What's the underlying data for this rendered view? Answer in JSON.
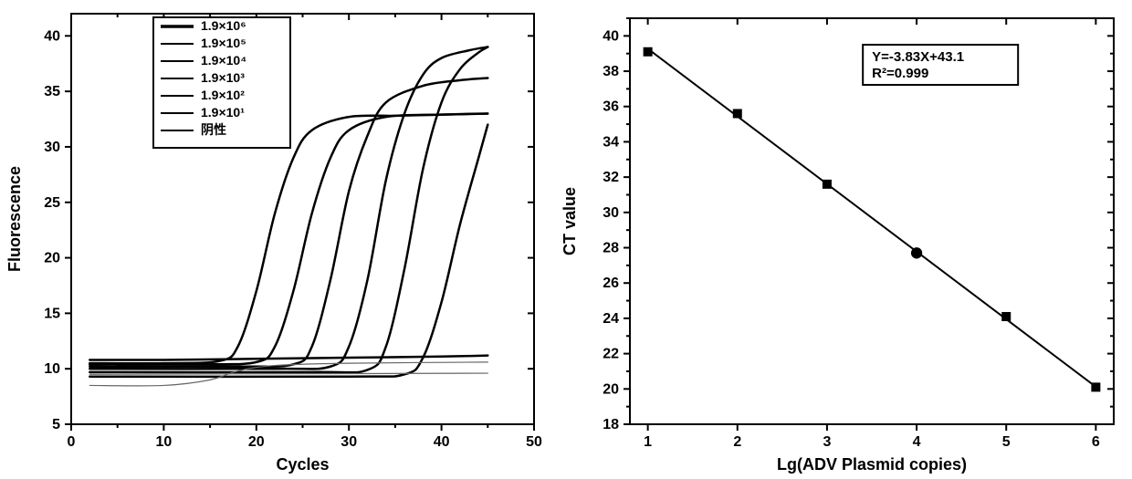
{
  "left_chart": {
    "type": "line",
    "xlabel": "Cycles",
    "ylabel": "Fluorescence",
    "label_fontsize": 18,
    "tick_fontsize": 16,
    "xlim": [
      0,
      50
    ],
    "ylim": [
      5,
      42
    ],
    "xtick_step": 10,
    "ytick_step": 5,
    "minor_ticks": true,
    "background_color": "#ffffff",
    "axis_color": "#000000",
    "legend": {
      "position": "top-inside",
      "items": [
        {
          "label": "1.9×10⁶",
          "weight": "bold"
        },
        {
          "label": "1.9×10⁵",
          "weight": "normal"
        },
        {
          "label": "1.9×10⁴",
          "weight": "normal"
        },
        {
          "label": "1.9×10³",
          "weight": "normal"
        },
        {
          "label": "1.9×10²",
          "weight": "normal"
        },
        {
          "label": "1.9×10¹",
          "weight": "normal"
        },
        {
          "label": "阴性",
          "weight": "normal"
        }
      ]
    },
    "series": [
      {
        "name": "1e6",
        "color": "#000000",
        "width": 2.5,
        "threshold_cycle": 20,
        "plateau": 33,
        "data": [
          [
            2,
            10.5
          ],
          [
            10,
            10.5
          ],
          [
            16,
            10.7
          ],
          [
            18,
            12.0
          ],
          [
            20,
            17
          ],
          [
            22,
            24
          ],
          [
            24,
            29
          ],
          [
            26,
            31.5
          ],
          [
            30,
            32.7
          ],
          [
            35,
            32.8
          ],
          [
            40,
            32.9
          ],
          [
            45,
            33
          ]
        ]
      },
      {
        "name": "1e5",
        "color": "#000000",
        "width": 2.5,
        "threshold_cycle": 24,
        "plateau": 33,
        "data": [
          [
            2,
            10.4
          ],
          [
            14,
            10.4
          ],
          [
            20,
            10.6
          ],
          [
            22,
            12.0
          ],
          [
            24,
            17
          ],
          [
            26,
            24
          ],
          [
            28,
            29
          ],
          [
            30,
            31.5
          ],
          [
            34,
            32.7
          ],
          [
            40,
            32.9
          ],
          [
            45,
            33
          ]
        ]
      },
      {
        "name": "1e4",
        "color": "#000000",
        "width": 2.5,
        "threshold_cycle": 28,
        "plateau": 36,
        "data": [
          [
            2,
            10.2
          ],
          [
            18,
            10.2
          ],
          [
            24,
            10.4
          ],
          [
            26,
            12.0
          ],
          [
            28,
            18
          ],
          [
            30,
            26
          ],
          [
            32,
            31
          ],
          [
            34,
            34
          ],
          [
            38,
            35.5
          ],
          [
            42,
            36
          ],
          [
            45,
            36.2
          ]
        ]
      },
      {
        "name": "1e3",
        "color": "#000000",
        "width": 2.5,
        "threshold_cycle": 32,
        "plateau": 39,
        "data": [
          [
            2,
            10
          ],
          [
            22,
            10
          ],
          [
            28,
            10.2
          ],
          [
            30,
            12.0
          ],
          [
            32,
            18
          ],
          [
            34,
            27
          ],
          [
            36,
            33
          ],
          [
            38,
            36.5
          ],
          [
            40,
            38
          ],
          [
            43,
            38.7
          ],
          [
            45,
            39
          ]
        ]
      },
      {
        "name": "1e2",
        "color": "#000000",
        "width": 2.5,
        "threshold_cycle": 36,
        "plateau": 39,
        "data": [
          [
            2,
            9.7
          ],
          [
            26,
            9.7
          ],
          [
            32,
            9.9
          ],
          [
            34,
            12.0
          ],
          [
            36,
            19
          ],
          [
            38,
            28
          ],
          [
            40,
            34
          ],
          [
            42,
            37
          ],
          [
            44,
            38.5
          ],
          [
            45,
            39
          ]
        ]
      },
      {
        "name": "1e1",
        "color": "#000000",
        "width": 2.5,
        "threshold_cycle": 40,
        "plateau": 32,
        "data": [
          [
            2,
            9.3
          ],
          [
            30,
            9.3
          ],
          [
            36,
            9.5
          ],
          [
            38,
            11.0
          ],
          [
            40,
            16
          ],
          [
            42,
            23
          ],
          [
            44,
            29
          ],
          [
            45,
            32
          ]
        ]
      },
      {
        "name": "neg",
        "color": "#000000",
        "width": 2.5,
        "data": [
          [
            2,
            10.8
          ],
          [
            10,
            10.8
          ],
          [
            20,
            10.9
          ],
          [
            30,
            11.0
          ],
          [
            40,
            11.1
          ],
          [
            45,
            11.2
          ]
        ]
      },
      {
        "name": "baseline-a",
        "color": "#666666",
        "width": 1.2,
        "data": [
          [
            2,
            8.5
          ],
          [
            10,
            8.5
          ],
          [
            15,
            9.0
          ],
          [
            18,
            9.8
          ],
          [
            22,
            10.3
          ],
          [
            30,
            10.5
          ],
          [
            45,
            10.6
          ]
        ]
      },
      {
        "name": "baseline-b",
        "color": "#666666",
        "width": 1.2,
        "data": [
          [
            2,
            9.5
          ],
          [
            45,
            9.6
          ]
        ]
      }
    ]
  },
  "right_chart": {
    "type": "scatter-line",
    "xlabel": "Lg(ADV Plasmid copies)",
    "ylabel": "CT value",
    "label_fontsize": 18,
    "tick_fontsize": 16,
    "xlim": [
      0.8,
      6.2
    ],
    "ylim": [
      18,
      41
    ],
    "xtick_step": 1,
    "ytick_step": 2,
    "background_color": "#ffffff",
    "axis_color": "#000000",
    "points": [
      {
        "x": 1,
        "y": 39.1,
        "marker": "square",
        "size": 8,
        "color": "#000000"
      },
      {
        "x": 2,
        "y": 35.6,
        "marker": "square",
        "size": 8,
        "color": "#000000"
      },
      {
        "x": 3,
        "y": 31.6,
        "marker": "square",
        "size": 8,
        "color": "#000000"
      },
      {
        "x": 4,
        "y": 27.7,
        "marker": "circle",
        "size": 8,
        "color": "#000000"
      },
      {
        "x": 5,
        "y": 24.1,
        "marker": "square",
        "size": 8,
        "color": "#000000"
      },
      {
        "x": 6,
        "y": 20.1,
        "marker": "square",
        "size": 8,
        "color": "#000000"
      }
    ],
    "fit": {
      "slope": -3.83,
      "intercept": 43.1,
      "r2": 0.999,
      "color": "#000000",
      "width": 2
    },
    "annotation": {
      "line1": "Y=-3.83X+43.1",
      "line2": "R²=0.999",
      "fontsize": 15
    }
  }
}
